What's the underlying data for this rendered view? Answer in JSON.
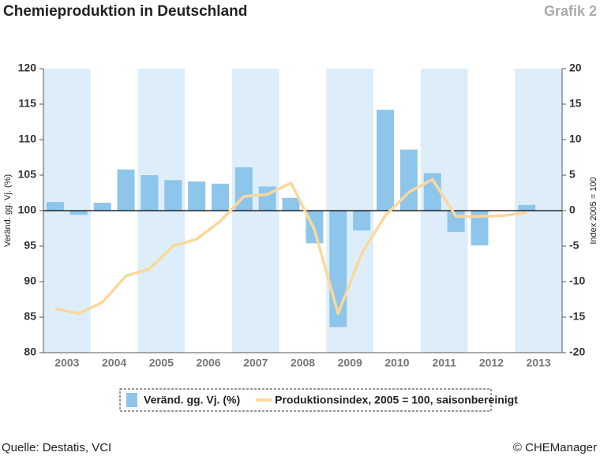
{
  "chart_data": {
    "type": "bar-line",
    "title": "Chemieproduktion in Deutschland",
    "label": "Grafik 2",
    "ylabel": "Veränd. gg. Vj. (%)",
    "y2label": "Index 2005 = 100",
    "source": "Quelle: Destatis, VCI",
    "credit": "© CHEManager",
    "categories": [
      "2003",
      "2004",
      "2005",
      "2006",
      "2007",
      "2008",
      "2009",
      "2010",
      "2011",
      "2012",
      "2013"
    ],
    "series": [
      {
        "name": "Veränd. gg. Vj. (%)",
        "type": "bar",
        "axis": "y2",
        "color": "#8ec5eb",
        "values": [
          [
            1.2,
            -0.6
          ],
          [
            1.1,
            5.8
          ],
          [
            5.0,
            4.3
          ],
          [
            4.1,
            3.8
          ],
          [
            6.1,
            3.4
          ],
          [
            1.8,
            -4.6
          ],
          [
            -16.4,
            -2.8
          ],
          [
            14.2,
            8.6
          ],
          [
            5.3,
            -3.0
          ],
          [
            -4.9,
            0
          ],
          [
            0.8,
            null
          ]
        ]
      },
      {
        "name": "Produktionsindex, 2005 = 100, saisonbereinigt",
        "type": "line",
        "color": "#fbd899",
        "values": [
          [
            86.2,
            85.5
          ],
          [
            87.1,
            90.8
          ],
          [
            91.8,
            95.0
          ],
          [
            96.0,
            98.5
          ],
          [
            102.0,
            102.3
          ],
          [
            103.9,
            97.3
          ],
          [
            85.5,
            94.0
          ],
          [
            99.3,
            102.6
          ],
          [
            104.4,
            99.2
          ],
          [
            99.2,
            99.3
          ],
          [
            99.7,
            null
          ]
        ]
      }
    ],
    "ylim": [
      80,
      120
    ],
    "yticks": [
      80,
      85,
      90,
      95,
      100,
      105,
      110,
      115,
      120
    ],
    "y2lim": [
      -20,
      20
    ],
    "y2ticks": [
      -20,
      -15,
      -10,
      -5,
      0,
      5,
      10,
      15,
      20
    ]
  }
}
